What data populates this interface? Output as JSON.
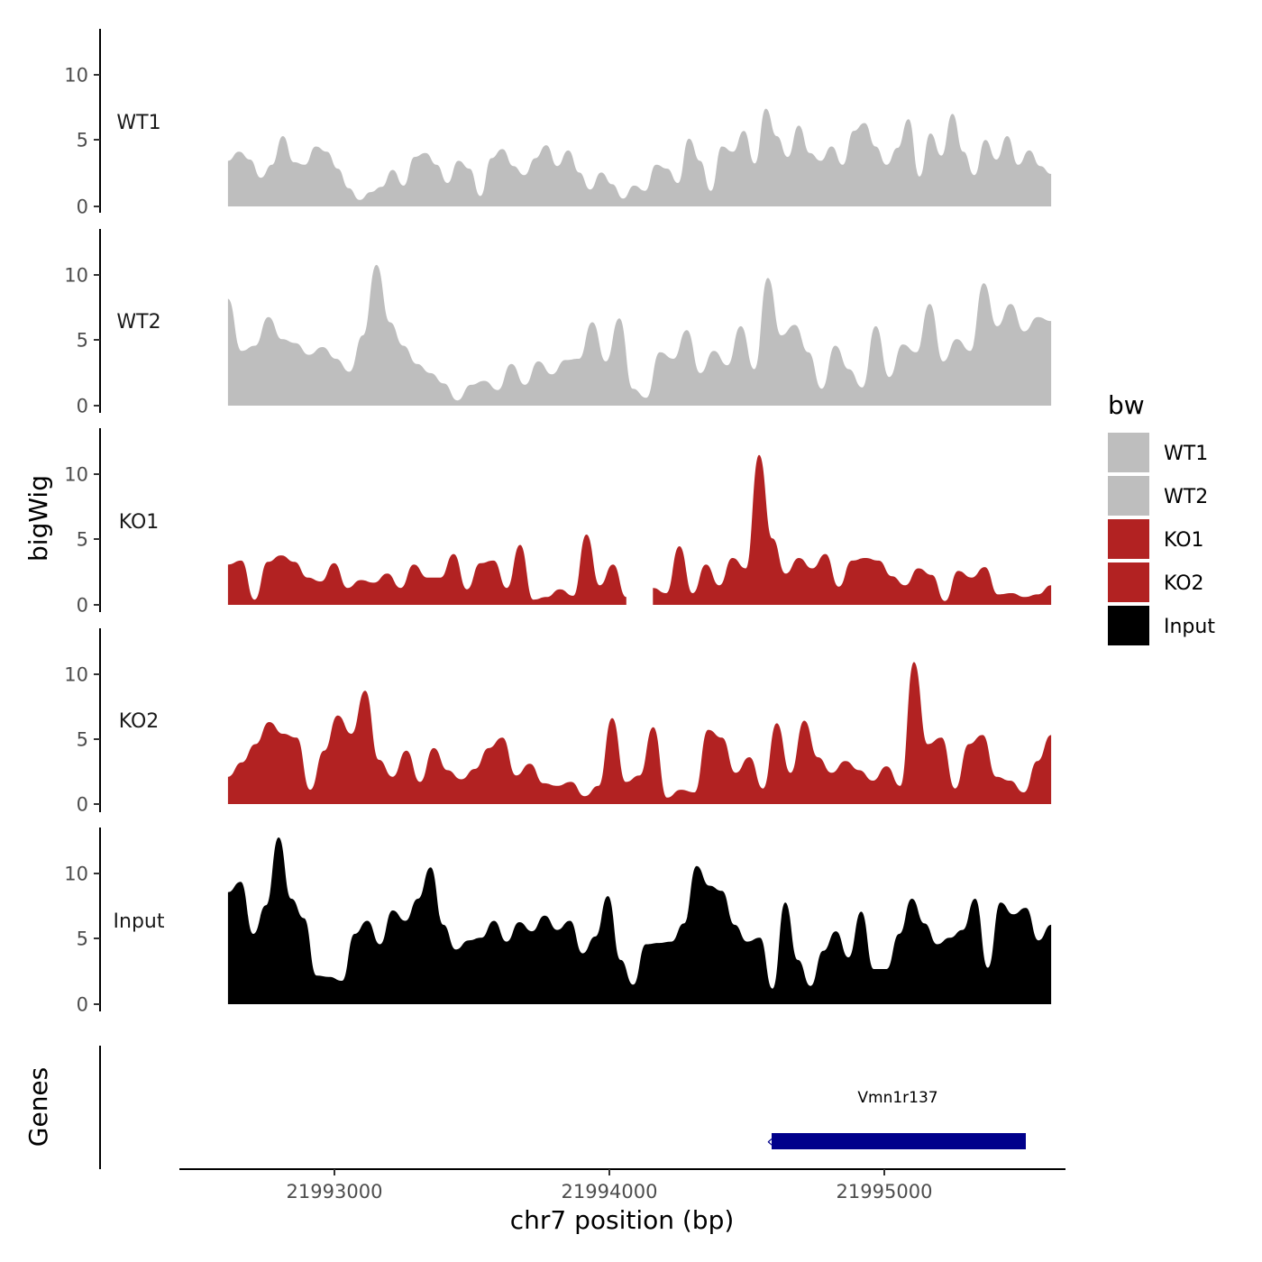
{
  "chart_data": {
    "type": "area",
    "title": "",
    "ylabel": "bigWig",
    "xlabel": "chr7 position (bp)",
    "genes_axis_label": "Genes",
    "xlim": [
      21992450,
      21995550
    ],
    "x_range": [
      21992620,
      21995500
    ],
    "x_ticks": [
      "21993000",
      "21994000",
      "21995000"
    ],
    "x_tick_values": [
      21993000,
      21994000,
      21995000
    ],
    "ylim": [
      0,
      14
    ],
    "y_ticks": [
      "0",
      "5",
      "10"
    ],
    "y_tick_values": [
      0,
      5,
      10
    ],
    "legend": {
      "title": "bw",
      "position": "right",
      "entries": [
        {
          "label": "WT1",
          "color": "#BEBEBE"
        },
        {
          "label": "WT2",
          "color": "#BEBEBE"
        },
        {
          "label": "KO1",
          "color": "#B22222"
        },
        {
          "label": "KO2",
          "color": "#B22222"
        },
        {
          "label": "Input",
          "color": "#000000"
        }
      ]
    },
    "series": [
      {
        "name": "WT1",
        "color": "#BEBEBE",
        "values": [
          3.5,
          4.2,
          3.6,
          2.2,
          3.2,
          5.4,
          3.4,
          3.2,
          4.6,
          4.2,
          2.9,
          1.4,
          0.5,
          1.1,
          1.5,
          2.8,
          1.6,
          3.8,
          4.1,
          3.2,
          1.8,
          3.5,
          2.9,
          0.8,
          3.7,
          4.4,
          3.1,
          2.4,
          3.7,
          4.7,
          3.1,
          4.3,
          2.6,
          1.3,
          2.6,
          1.7,
          0.6,
          1.6,
          1.2,
          3.2,
          2.9,
          1.8,
          5.2,
          3.5,
          1.2,
          4.6,
          4.2,
          5.8,
          3.3,
          7.5,
          5.4,
          3.8,
          6.2,
          4.1,
          3.5,
          4.6,
          3.2,
          5.8,
          6.4,
          4.6,
          3.2,
          4.5,
          6.7,
          2.3,
          5.6,
          3.9,
          7.1,
          4.2,
          2.4,
          5.1,
          3.6,
          5.4,
          3.2,
          4.3,
          3.1,
          2.5
        ]
      },
      {
        "name": "WT2",
        "color": "#BEBEBE",
        "values": [
          8.2,
          4.2,
          4.6,
          6.8,
          5.1,
          4.8,
          3.9,
          4.5,
          3.6,
          2.6,
          5.4,
          10.8,
          6.4,
          4.6,
          3.2,
          2.5,
          1.7,
          0.4,
          1.6,
          1.9,
          1.2,
          3.2,
          1.6,
          3.4,
          2.4,
          3.5,
          3.6,
          6.4,
          3.4,
          6.7,
          1.3,
          0.6,
          4.1,
          3.6,
          5.8,
          2.5,
          4.2,
          3.1,
          6.1,
          2.8,
          9.8,
          5.4,
          6.2,
          4.1,
          1.3,
          4.6,
          2.8,
          1.4,
          6.1,
          2.2,
          4.7,
          4.1,
          7.8,
          3.4,
          5.1,
          4.2,
          9.4,
          6.1,
          7.8,
          5.7,
          6.8,
          6.5
        ]
      },
      {
        "name": "KO1",
        "color": "#B22222",
        "values": [
          3.1,
          3.4,
          0.4,
          3.3,
          3.8,
          3.3,
          2.1,
          1.8,
          3.2,
          1.3,
          1.9,
          1.7,
          2.4,
          1.3,
          3.1,
          2.1,
          2.1,
          3.9,
          1.2,
          3.2,
          3.4,
          1.3,
          4.6,
          0.4,
          0.6,
          1.2,
          0.7,
          5.4,
          1.5,
          3.1,
          0.6,
          null,
          1.3,
          0.9,
          4.5,
          0.9,
          3.1,
          1.5,
          3.6,
          2.8,
          11.5,
          5.1,
          2.4,
          3.6,
          2.8,
          3.9,
          1.4,
          3.4,
          3.6,
          3.4,
          2.2,
          1.5,
          2.8,
          2.3,
          0.3,
          2.6,
          2.1,
          2.9,
          0.8,
          0.9,
          0.6,
          0.8,
          1.5
        ]
      },
      {
        "name": "KO2",
        "color": "#B22222",
        "values": [
          2.1,
          3.2,
          4.6,
          6.3,
          5.4,
          5.1,
          1.1,
          4.1,
          6.8,
          5.4,
          8.7,
          3.4,
          2.1,
          4.1,
          1.7,
          4.3,
          2.6,
          1.9,
          2.7,
          4.3,
          5.1,
          2.2,
          3.1,
          1.6,
          1.4,
          1.7,
          0.6,
          1.4,
          6.6,
          1.7,
          2.2,
          5.9,
          0.5,
          1.1,
          0.9,
          5.7,
          5.1,
          2.4,
          3.6,
          1.2,
          6.2,
          2.4,
          6.4,
          3.6,
          2.4,
          3.3,
          2.6,
          1.8,
          2.9,
          1.4,
          10.9,
          4.6,
          5.1,
          1.2,
          4.6,
          5.3,
          2.1,
          1.8,
          0.9,
          3.3,
          5.3
        ]
      },
      {
        "name": "Input",
        "color": "#000000",
        "values": [
          8.6,
          9.4,
          5.4,
          7.6,
          12.8,
          8.1,
          6.6,
          2.2,
          2.1,
          1.8,
          5.4,
          6.4,
          4.6,
          7.2,
          6.4,
          8.1,
          10.5,
          6.1,
          4.2,
          4.9,
          5.1,
          6.4,
          4.8,
          6.3,
          5.6,
          6.8,
          5.7,
          6.4,
          3.9,
          5.2,
          8.3,
          3.4,
          1.5,
          4.6,
          4.7,
          4.8,
          6.2,
          10.6,
          9.1,
          8.7,
          6.1,
          4.8,
          5.1,
          1.2,
          7.8,
          3.4,
          1.4,
          4.1,
          5.6,
          3.6,
          7.1,
          2.7,
          2.7,
          5.4,
          8.1,
          6.2,
          4.6,
          5.1,
          5.7,
          8.1,
          2.8,
          7.8,
          6.9,
          7.4,
          4.9,
          6.1
        ]
      }
    ],
    "genes": [
      {
        "name": "Vmn1r137",
        "start": 21994580,
        "end": 21995500,
        "strand": "-",
        "color": "#00008B"
      }
    ]
  }
}
